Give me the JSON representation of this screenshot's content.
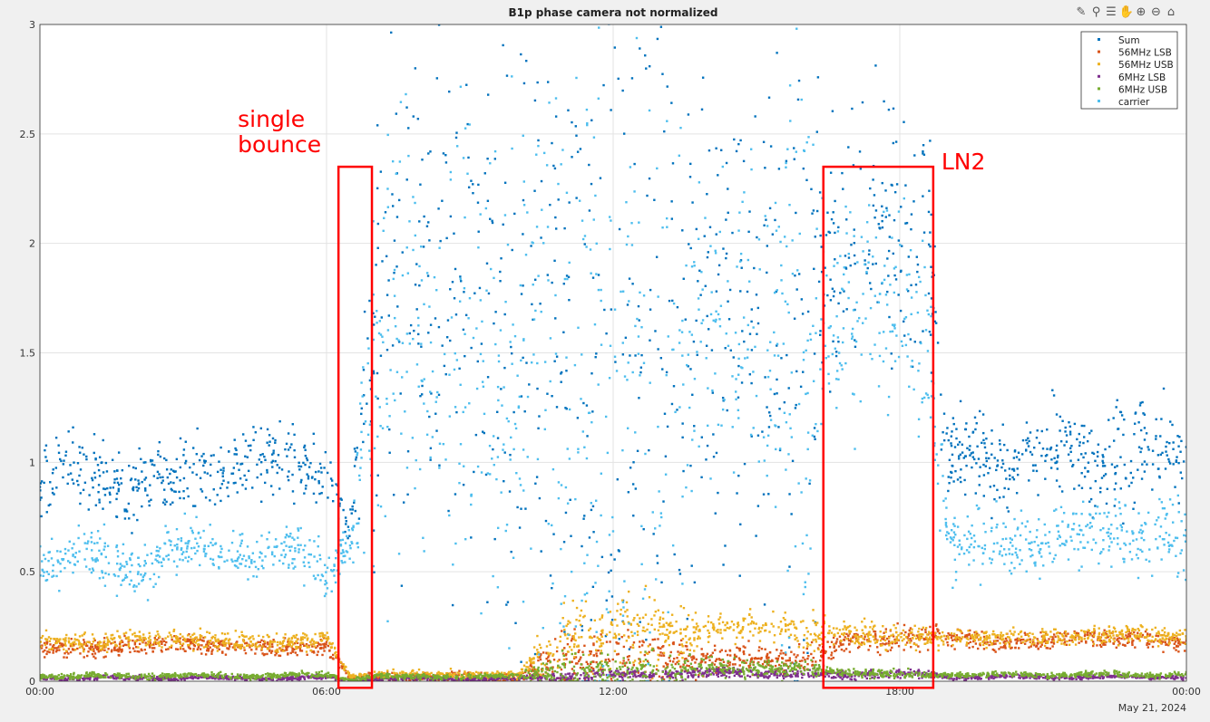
{
  "toolbar": {
    "icons": [
      "brush-icon",
      "data-tip-icon",
      "legend-icon",
      "pan-icon",
      "zoom-in-icon",
      "zoom-out-icon",
      "home-icon"
    ]
  },
  "chart_data": {
    "type": "scatter",
    "title": "B1p phase camera not normalized",
    "xlabel": "",
    "ylabel": "",
    "date_label": "May 21, 2024",
    "x_ticks": [
      "00:00",
      "06:00",
      "12:00",
      "18:00",
      "00:00"
    ],
    "y_ticks": [
      "0",
      "0.5",
      "1",
      "1.5",
      "2",
      "2.5",
      "3"
    ],
    "xlim_hours": [
      0,
      24
    ],
    "ylim": [
      0,
      3
    ],
    "grid": true,
    "legend_position": "top-right",
    "hours": [
      0,
      1,
      2,
      3,
      4,
      5,
      6,
      6.5,
      7,
      8,
      9,
      10,
      11,
      12,
      13,
      14,
      15,
      16,
      16.5,
      17,
      18,
      18.6,
      19,
      20,
      21,
      22,
      23,
      24
    ],
    "series": [
      {
        "name": "Sum",
        "color": "#0072bd",
        "mean": [
          0.9,
          0.95,
          0.9,
          0.95,
          1.0,
          0.98,
          1.0,
          0.65,
          1.6,
          1.7,
          1.8,
          1.6,
          1.5,
          1.4,
          1.5,
          1.8,
          1.7,
          1.6,
          1.9,
          2.0,
          2.1,
          2.0,
          1.0,
          1.0,
          1.05,
          1.0,
          1.1,
          1.0
        ],
        "spread": [
          0.08,
          0.08,
          0.08,
          0.08,
          0.08,
          0.08,
          0.08,
          0.05,
          0.5,
          0.55,
          0.6,
          0.7,
          0.9,
          0.9,
          0.9,
          0.5,
          0.6,
          0.8,
          0.3,
          0.3,
          0.3,
          0.3,
          0.1,
          0.1,
          0.1,
          0.1,
          0.12,
          0.1
        ]
      },
      {
        "name": "56MHz LSB",
        "color": "#d95319",
        "mean": [
          0.15,
          0.15,
          0.16,
          0.17,
          0.16,
          0.15,
          0.16,
          0.01,
          0.02,
          0.02,
          0.02,
          0.02,
          0.1,
          0.1,
          0.1,
          0.1,
          0.1,
          0.1,
          0.15,
          0.18,
          0.2,
          0.2,
          0.2,
          0.18,
          0.18,
          0.2,
          0.19,
          0.18
        ],
        "spread": [
          0.02,
          0.02,
          0.02,
          0.02,
          0.02,
          0.02,
          0.02,
          0.005,
          0.01,
          0.01,
          0.01,
          0.01,
          0.06,
          0.06,
          0.06,
          0.03,
          0.03,
          0.03,
          0.03,
          0.03,
          0.03,
          0.03,
          0.02,
          0.02,
          0.02,
          0.02,
          0.02,
          0.02
        ]
      },
      {
        "name": "56MHz USB",
        "color": "#edb120",
        "mean": [
          0.18,
          0.18,
          0.19,
          0.19,
          0.18,
          0.18,
          0.19,
          0.02,
          0.03,
          0.03,
          0.03,
          0.03,
          0.2,
          0.22,
          0.22,
          0.24,
          0.25,
          0.22,
          0.22,
          0.21,
          0.2,
          0.2,
          0.2,
          0.2,
          0.2,
          0.21,
          0.21,
          0.2
        ],
        "spread": [
          0.02,
          0.02,
          0.02,
          0.02,
          0.02,
          0.02,
          0.02,
          0.005,
          0.01,
          0.01,
          0.01,
          0.01,
          0.08,
          0.08,
          0.08,
          0.03,
          0.03,
          0.05,
          0.03,
          0.03,
          0.03,
          0.03,
          0.02,
          0.02,
          0.02,
          0.02,
          0.02,
          0.02
        ]
      },
      {
        "name": "6MHz LSB",
        "color": "#7e2f8e",
        "mean": [
          0.015,
          0.015,
          0.015,
          0.015,
          0.015,
          0.015,
          0.015,
          0.005,
          0.01,
          0.01,
          0.01,
          0.01,
          0.02,
          0.03,
          0.03,
          0.04,
          0.04,
          0.03,
          0.03,
          0.03,
          0.035,
          0.03,
          0.02,
          0.02,
          0.02,
          0.02,
          0.02,
          0.02
        ],
        "spread": [
          0.005,
          0.005,
          0.005,
          0.005,
          0.005,
          0.005,
          0.005,
          0.002,
          0.004,
          0.004,
          0.004,
          0.004,
          0.01,
          0.01,
          0.01,
          0.01,
          0.01,
          0.01,
          0.01,
          0.01,
          0.01,
          0.01,
          0.005,
          0.005,
          0.005,
          0.005,
          0.005,
          0.005
        ]
      },
      {
        "name": "6MHz USB",
        "color": "#77ac30",
        "mean": [
          0.025,
          0.025,
          0.025,
          0.025,
          0.025,
          0.025,
          0.03,
          0.01,
          0.02,
          0.02,
          0.02,
          0.02,
          0.05,
          0.05,
          0.05,
          0.06,
          0.06,
          0.05,
          0.05,
          0.04,
          0.03,
          0.03,
          0.03,
          0.03,
          0.03,
          0.03,
          0.03,
          0.03
        ],
        "spread": [
          0.006,
          0.006,
          0.006,
          0.006,
          0.006,
          0.006,
          0.006,
          0.003,
          0.006,
          0.006,
          0.006,
          0.006,
          0.04,
          0.04,
          0.04,
          0.02,
          0.02,
          0.02,
          0.01,
          0.01,
          0.01,
          0.01,
          0.006,
          0.006,
          0.006,
          0.006,
          0.006,
          0.006
        ]
      },
      {
        "name": "carrier",
        "color": "#4dbeee",
        "mean": [
          0.55,
          0.55,
          0.55,
          0.58,
          0.6,
          0.58,
          0.55,
          0.65,
          1.4,
          1.5,
          1.5,
          1.4,
          1.3,
          1.3,
          1.3,
          1.6,
          1.6,
          1.5,
          1.7,
          1.7,
          1.75,
          1.6,
          0.65,
          0.6,
          0.65,
          0.65,
          0.7,
          0.6
        ],
        "spread": [
          0.06,
          0.06,
          0.06,
          0.06,
          0.06,
          0.06,
          0.06,
          0.04,
          0.5,
          0.5,
          0.55,
          0.6,
          0.8,
          0.8,
          0.8,
          0.3,
          0.4,
          0.7,
          0.25,
          0.25,
          0.25,
          0.25,
          0.08,
          0.08,
          0.08,
          0.08,
          0.08,
          0.08
        ]
      }
    ],
    "annotations": [
      {
        "text_lines": [
          "single",
          "bounce"
        ],
        "color": "#ff0000",
        "x_range_hours": [
          6.25,
          6.95
        ],
        "y_range": [
          -0.03,
          2.35
        ]
      },
      {
        "text_lines": [
          "LN2"
        ],
        "color": "#ff0000",
        "x_range_hours": [
          16.4,
          18.7
        ],
        "y_range": [
          -0.03,
          2.35
        ]
      }
    ]
  }
}
